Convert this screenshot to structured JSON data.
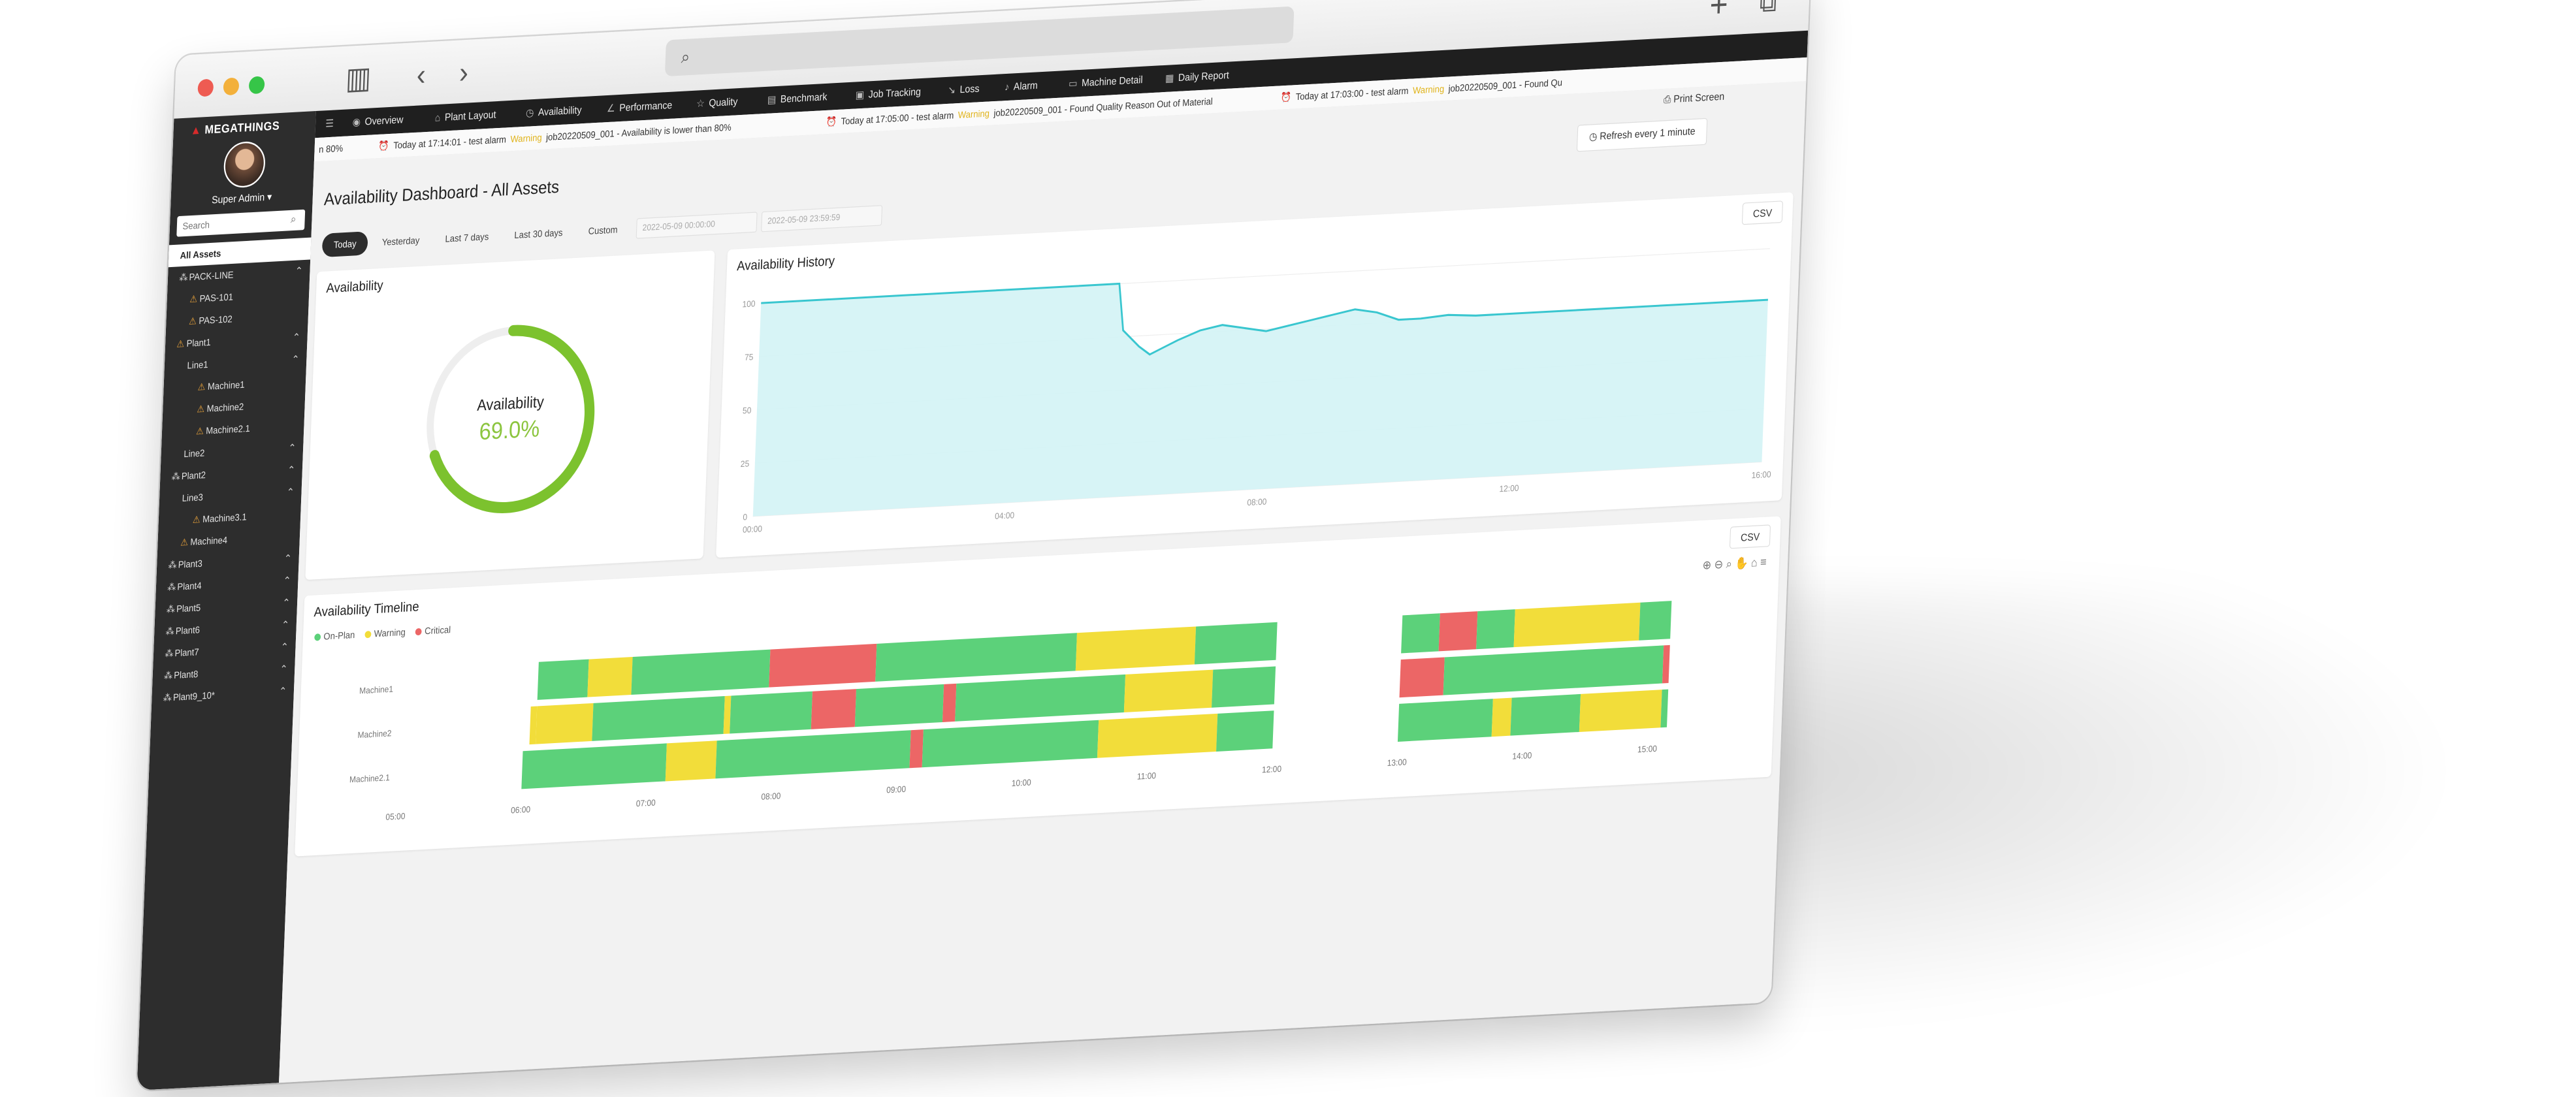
{
  "browser": {
    "url": ""
  },
  "brand": {
    "name": "MEGATHINGS"
  },
  "user": {
    "role": "Super Admin ▾"
  },
  "sidebar": {
    "search_placeholder": "Search",
    "tree": [
      {
        "label": "All Assets",
        "depth": 0,
        "type": "root",
        "selected": true,
        "expandable": false
      },
      {
        "label": "PACK-LINE",
        "depth": 0,
        "type": "group",
        "expandable": true
      },
      {
        "label": "PAS-101",
        "depth": 1,
        "type": "machine",
        "expandable": false
      },
      {
        "label": "PAS-102",
        "depth": 1,
        "type": "machine",
        "expandable": false
      },
      {
        "label": "Plant1",
        "depth": 0,
        "type": "machine",
        "expandable": true
      },
      {
        "label": "Line1",
        "depth": 1,
        "type": "none",
        "expandable": true
      },
      {
        "label": "Machine1",
        "depth": 2,
        "type": "machine",
        "expandable": false
      },
      {
        "label": "Machine2",
        "depth": 2,
        "type": "machine",
        "expandable": false
      },
      {
        "label": "Machine2.1",
        "depth": 2,
        "type": "machine",
        "expandable": false
      },
      {
        "label": "Line2",
        "depth": 1,
        "type": "none",
        "expandable": true
      },
      {
        "label": "Plant2",
        "depth": 0,
        "type": "group",
        "expandable": true
      },
      {
        "label": "Line3",
        "depth": 1,
        "type": "none",
        "expandable": true
      },
      {
        "label": "Machine3.1",
        "depth": 2,
        "type": "machine",
        "expandable": false
      },
      {
        "label": "Machine4",
        "depth": 1,
        "type": "machine",
        "expandable": false
      },
      {
        "label": "Plant3",
        "depth": 0,
        "type": "group",
        "expandable": true
      },
      {
        "label": "Plant4",
        "depth": 0,
        "type": "group",
        "expandable": true
      },
      {
        "label": "Plant5",
        "depth": 0,
        "type": "group",
        "expandable": true
      },
      {
        "label": "Plant6",
        "depth": 0,
        "type": "group",
        "expandable": true
      },
      {
        "label": "Plant7",
        "depth": 0,
        "type": "group",
        "expandable": true
      },
      {
        "label": "Plant8",
        "depth": 0,
        "type": "group",
        "expandable": true
      },
      {
        "label": "Plant9_10*",
        "depth": 0,
        "type": "group",
        "expandable": true
      }
    ]
  },
  "nav": {
    "items": [
      {
        "label": "",
        "icon": "☰",
        "name": "menu"
      },
      {
        "label": "Overview",
        "icon": "◉",
        "name": "overview"
      },
      {
        "label": "Plant Layout",
        "icon": "⌂",
        "name": "plant-layout"
      },
      {
        "label": "Availability",
        "icon": "◷",
        "name": "availability"
      },
      {
        "label": "Performance",
        "icon": "∠",
        "name": "performance"
      },
      {
        "label": "Quality",
        "icon": "☆",
        "name": "quality"
      },
      {
        "label": "Benchmark",
        "icon": "▤",
        "name": "benchmark"
      },
      {
        "label": "Job Tracking",
        "icon": "▣",
        "name": "job-tracking"
      },
      {
        "label": "Loss",
        "icon": "↘",
        "name": "loss"
      },
      {
        "label": "Alarm",
        "icon": "♪",
        "name": "alarm"
      },
      {
        "label": "Machine Detail",
        "icon": "▭",
        "name": "machine-detail"
      },
      {
        "label": "Daily Report",
        "icon": "▦",
        "name": "daily-report"
      }
    ]
  },
  "ticker": [
    {
      "lead": "n 80%",
      "time": "",
      "level": "",
      "msg": ""
    },
    {
      "lead": "",
      "time": "Today at 17:14:01 - test alarm",
      "level": "Warning",
      "msg": "job20220509_001 - Availability is lower than 80%"
    },
    {
      "lead": "",
      "time": "Today at 17:05:00 - test alarm",
      "level": "Warning",
      "msg": "job20220509_001 - Found Quality Reason Out of Material"
    },
    {
      "lead": "",
      "time": "Today at 17:03:00 - test alarm",
      "level": "Warning",
      "msg": "job20220509_001 - Found Qu"
    }
  ],
  "page": {
    "title": "Availability Dashboard - All Assets",
    "print_label": "⎙  Print Screen",
    "refresh_label": "◷  Refresh every 1 minute"
  },
  "range": {
    "options": [
      "Today",
      "Yesterday",
      "Last 7 days",
      "Last 30 days",
      "Custom"
    ],
    "active": 0,
    "start_value": "2022-05-09 00:00:00",
    "end_value": "2022-05-09 23:59:59"
  },
  "availability": {
    "title": "Availability",
    "label": "Availability",
    "value_text": "69.0%",
    "value": 0.69
  },
  "history": {
    "title": "Availability History",
    "csv_label": "CSV"
  },
  "timeline": {
    "title": "Availability Timeline",
    "csv_label": "CSV",
    "legend": [
      {
        "label": "On-Plan",
        "color": "#5cd17a"
      },
      {
        "label": "Warning",
        "color": "#f2dd3a"
      },
      {
        "label": "Critical",
        "color": "#ec6666"
      }
    ],
    "toolbar_icons": [
      "zoom-in-icon",
      "zoom-out-icon",
      "magnifier-icon",
      "pan-icon",
      "home-icon",
      "menu-icon"
    ]
  },
  "colors": {
    "on_plan": "#5cd17a",
    "warning": "#f2dd3a",
    "critical": "#ec6666",
    "gauge": "#7cc22e",
    "history_line": "#39c6cf"
  },
  "chart_data": [
    {
      "type": "area",
      "title": "Availability History",
      "xlabel": "",
      "ylabel": "",
      "ylim": [
        0,
        100
      ],
      "yticks": [
        "0",
        "25",
        "50",
        "75",
        "100"
      ],
      "xticks": [
        "00:00",
        "04:00",
        "08:00",
        "12:00",
        "16:00"
      ],
      "x_hours": [
        0,
        6.5,
        6.6,
        6.9,
        7.1,
        7.6,
        8.0,
        8.4,
        8.8,
        9.2,
        9.6,
        10.0,
        10.4,
        10.8,
        11.2,
        11.6,
        12.0,
        12.5,
        13.0,
        14.0,
        15.0,
        16.0,
        17.0,
        18.3
      ],
      "y": [
        100,
        100,
        78,
        70,
        66,
        72,
        76,
        78,
        76,
        74,
        76,
        78,
        80,
        82,
        80,
        76,
        76,
        77,
        76,
        76,
        76,
        76,
        76,
        76
      ]
    },
    {
      "type": "timeline",
      "title": "Availability Timeline",
      "categories": [
        "Machine1",
        "Machine2",
        "Machine2.1"
      ],
      "xticks": [
        "05:00",
        "06:00",
        "07:00",
        "08:00",
        "09:00",
        "10:00",
        "11:00",
        "12:00",
        "13:00",
        "14:00",
        "15:00"
      ],
      "xlim": [
        5,
        15.5
      ],
      "series": [
        {
          "category": "Machine1",
          "segments": [
            {
              "start": 6.1,
              "end": 6.5,
              "status": "on_plan"
            },
            {
              "start": 6.5,
              "end": 6.85,
              "status": "warning"
            },
            {
              "start": 6.85,
              "end": 7.95,
              "status": "on_plan"
            },
            {
              "start": 7.95,
              "end": 8.8,
              "status": "critical"
            },
            {
              "start": 8.8,
              "end": 10.4,
              "status": "on_plan"
            },
            {
              "start": 10.4,
              "end": 11.35,
              "status": "warning"
            },
            {
              "start": 11.35,
              "end": 12.0,
              "status": "on_plan"
            },
            {
              "start": 13.0,
              "end": 13.3,
              "status": "on_plan"
            },
            {
              "start": 13.3,
              "end": 13.6,
              "status": "critical"
            },
            {
              "start": 13.6,
              "end": 13.9,
              "status": "on_plan"
            },
            {
              "start": 13.9,
              "end": 14.9,
              "status": "warning"
            },
            {
              "start": 14.9,
              "end": 15.15,
              "status": "on_plan"
            }
          ]
        },
        {
          "category": "Machine2",
          "segments": [
            {
              "start": 6.05,
              "end": 6.1,
              "status": "warning"
            },
            {
              "start": 6.1,
              "end": 6.55,
              "status": "warning"
            },
            {
              "start": 6.55,
              "end": 7.6,
              "status": "on_plan"
            },
            {
              "start": 7.6,
              "end": 7.65,
              "status": "warning"
            },
            {
              "start": 7.65,
              "end": 8.3,
              "status": "on_plan"
            },
            {
              "start": 8.3,
              "end": 8.65,
              "status": "critical"
            },
            {
              "start": 8.65,
              "end": 9.35,
              "status": "on_plan"
            },
            {
              "start": 9.35,
              "end": 9.45,
              "status": "critical"
            },
            {
              "start": 9.45,
              "end": 10.8,
              "status": "on_plan"
            },
            {
              "start": 10.8,
              "end": 11.5,
              "status": "warning"
            },
            {
              "start": 11.5,
              "end": 12.0,
              "status": "on_plan"
            },
            {
              "start": 13.0,
              "end": 13.35,
              "status": "critical"
            },
            {
              "start": 13.35,
              "end": 15.1,
              "status": "on_plan"
            },
            {
              "start": 15.1,
              "end": 15.15,
              "status": "critical"
            }
          ]
        },
        {
          "category": "Machine2.1",
          "segments": [
            {
              "start": 6.0,
              "end": 7.15,
              "status": "on_plan"
            },
            {
              "start": 7.15,
              "end": 7.55,
              "status": "warning"
            },
            {
              "start": 7.55,
              "end": 9.1,
              "status": "on_plan"
            },
            {
              "start": 9.1,
              "end": 9.2,
              "status": "critical"
            },
            {
              "start": 9.2,
              "end": 10.6,
              "status": "on_plan"
            },
            {
              "start": 10.6,
              "end": 11.55,
              "status": "warning"
            },
            {
              "start": 11.55,
              "end": 12.0,
              "status": "on_plan"
            },
            {
              "start": 13.0,
              "end": 13.75,
              "status": "on_plan"
            },
            {
              "start": 13.75,
              "end": 13.9,
              "status": "warning"
            },
            {
              "start": 13.9,
              "end": 14.45,
              "status": "on_plan"
            },
            {
              "start": 14.45,
              "end": 15.1,
              "status": "warning"
            },
            {
              "start": 15.1,
              "end": 15.15,
              "status": "on_plan"
            }
          ]
        }
      ]
    }
  ]
}
